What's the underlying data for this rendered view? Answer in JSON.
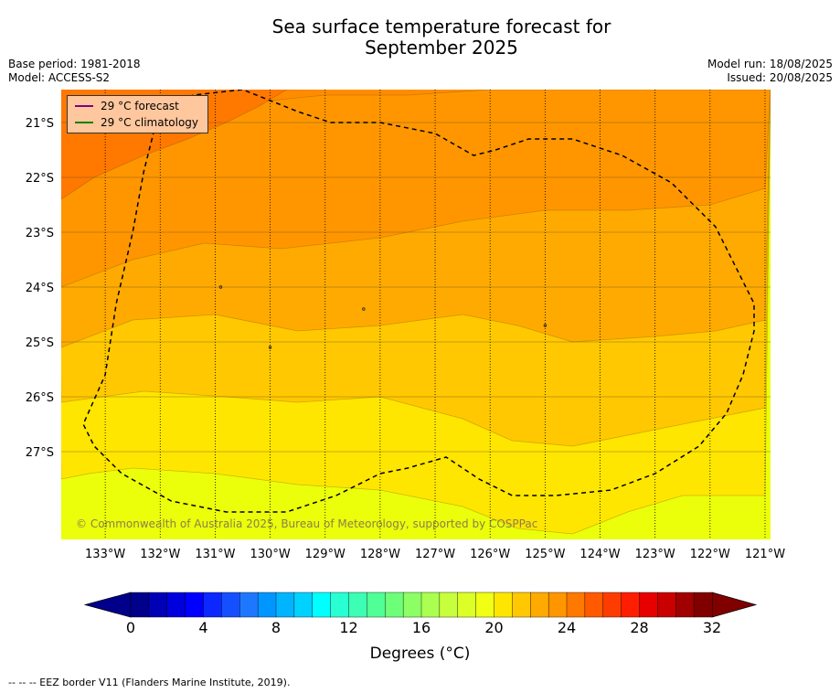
{
  "header": {
    "title_line1": "Sea surface temperature forecast for",
    "title_line2": "September 2025",
    "base_period": "Base period: 1981-2018",
    "model": "Model: ACCESS-S2",
    "model_run": "Model run: 18/08/2025",
    "issued": "Issued: 20/08/2025"
  },
  "legend": {
    "items": [
      {
        "label": "29 °C  forecast",
        "color": "#800080"
      },
      {
        "label": "29 °C  climatology",
        "color": "#008000"
      }
    ]
  },
  "watermark": "© Commonwealth of Australia 2025, Bureau of Meteorology, supported by COSPPac",
  "footnote": "--  --  -- EEZ border V11 (Flanders Marine Institute, 2019).",
  "colorbar": {
    "unit": "Degrees (°C)",
    "tick_labels": [
      "0",
      "4",
      "8",
      "12",
      "16",
      "20",
      "24",
      "28",
      "32"
    ]
  },
  "chart_data": {
    "type": "heatmap",
    "title": "Sea surface temperature forecast for September 2025",
    "variable": "Sea surface temperature",
    "units": "°C",
    "xlim": [
      -133.8,
      -120.9
    ],
    "ylim": [
      -28.6,
      -20.4
    ],
    "x_ticks": [
      -133,
      -132,
      -131,
      -130,
      -129,
      -128,
      -127,
      -126,
      -125,
      -124,
      -123,
      -122,
      -121
    ],
    "x_tick_labels": [
      "133°W",
      "132°W",
      "131°W",
      "130°W",
      "129°W",
      "128°W",
      "127°W",
      "126°W",
      "125°W",
      "124°W",
      "123°W",
      "122°W",
      "121°W"
    ],
    "y_ticks": [
      -21,
      -22,
      -23,
      -24,
      -25,
      -26,
      -27
    ],
    "y_tick_labels": [
      "21°S",
      "22°S",
      "23°S",
      "24°S",
      "25°S",
      "26°S",
      "27°S"
    ],
    "grid": true,
    "legend_placement": "top-left",
    "colorbar_range": [
      0,
      32
    ],
    "colorbar_step": 1,
    "colorbar_colors": [
      "#00008b",
      "#0000b4",
      "#0000dc",
      "#0000ff",
      "#0a28ff",
      "#1450ff",
      "#1e78ff",
      "#0096ff",
      "#00b4ff",
      "#00d2ff",
      "#00ffff",
      "#28ffd2",
      "#3cffb4",
      "#50ff96",
      "#6eff78",
      "#8cff64",
      "#aaff50",
      "#c8ff3c",
      "#dcff28",
      "#f0ff14",
      "#ffe600",
      "#ffc800",
      "#ffaa00",
      "#ff9600",
      "#ff7800",
      "#ff5a00",
      "#ff3c00",
      "#ff1e00",
      "#e60000",
      "#c80000",
      "#a00000",
      "#800000"
    ],
    "contour_bands": [
      {
        "range": [
          21,
          22
        ],
        "color": "#ebff0a"
      },
      {
        "range": [
          22,
          23
        ],
        "color": "#ffe600"
      },
      {
        "range": [
          23,
          24
        ],
        "color": "#ffc800"
      },
      {
        "range": [
          24,
          25
        ],
        "color": "#ffaa00"
      },
      {
        "range": [
          25,
          26
        ],
        "color": "#ff9600"
      },
      {
        "range": [
          26,
          27
        ],
        "color": "#ff8c00"
      },
      {
        "range": [
          27,
          28
        ],
        "color": "#ff7800"
      }
    ],
    "band_boundaries": [
      {
        "level": 27,
        "lon": [
          -133.8,
          -133.2,
          -132.3,
          -131.5,
          -130.8,
          -130.2,
          -129.7
        ],
        "lat": [
          -22.4,
          -22.0,
          -21.6,
          -21.3,
          -21.0,
          -20.7,
          -20.4
        ]
      },
      {
        "level": 26,
        "lon": [
          -133.8,
          -132.5,
          -131.2,
          -130.0,
          -129.0,
          -127.5,
          -126.0,
          -124.0,
          -122.0,
          -121.0
        ],
        "lat": [
          -20.8,
          -20.8,
          -20.7,
          -20.6,
          -20.5,
          -20.5,
          -20.4,
          -20.4,
          -20.4,
          -20.4
        ]
      },
      {
        "level": 25,
        "lon": [
          -133.8,
          -132.5,
          -131.2,
          -129.8,
          -128.0,
          -126.5,
          -125.0,
          -123.5,
          -122.0,
          -121.0
        ],
        "lat": [
          -24.0,
          -23.5,
          -23.2,
          -23.3,
          -23.1,
          -22.8,
          -22.6,
          -22.6,
          -22.5,
          -22.2
        ]
      },
      {
        "level": 24,
        "lon": [
          -133.8,
          -132.5,
          -131.0,
          -129.5,
          -128.0,
          -126.5,
          -125.5,
          -124.5,
          -123.0,
          -121.9,
          -121.0
        ],
        "lat": [
          -25.1,
          -24.6,
          -24.5,
          -24.8,
          -24.7,
          -24.5,
          -24.7,
          -25.0,
          -24.9,
          -24.8,
          -24.6
        ]
      },
      {
        "level": 23,
        "lon": [
          -133.8,
          -132.3,
          -130.8,
          -129.5,
          -128.0,
          -126.5,
          -125.6,
          -124.5,
          -123.0,
          -122.0,
          -121.0
        ],
        "lat": [
          -26.1,
          -25.9,
          -26.0,
          -26.1,
          -26.0,
          -26.4,
          -26.8,
          -26.9,
          -26.6,
          -26.4,
          -26.2
        ]
      },
      {
        "level": 22,
        "lon": [
          -133.8,
          -133.3,
          -132.5,
          -131.0,
          -129.5,
          -128.0,
          -126.5,
          -125.5,
          -124.5,
          -123.5,
          -122.5,
          -121.0
        ],
        "lat": [
          -27.5,
          -27.4,
          -27.3,
          -27.4,
          -27.6,
          -27.7,
          -28.0,
          -28.4,
          -28.5,
          -28.1,
          -27.8,
          -27.8
        ]
      }
    ],
    "eez_border": {
      "style": "dashed",
      "lon": [
        -132.0,
        -132.3,
        -132.5,
        -132.8,
        -133.0,
        -133.4,
        -133.2,
        -132.7,
        -131.8,
        -130.8,
        -129.7,
        -128.8,
        -128.0,
        -127.5,
        -126.8,
        -126.2,
        -125.6,
        -124.8,
        -123.8,
        -123.0,
        -122.2,
        -121.7,
        -121.4,
        -121.2,
        -121.2,
        -121.5,
        -121.9,
        -122.7,
        -123.6,
        -124.5,
        -125.3,
        -125.9,
        -126.3,
        -127.0,
        -128.0,
        -128.9,
        -129.5,
        -130.5,
        -131.4,
        -131.9,
        -132.0
      ],
      "lat": [
        -20.7,
        -21.9,
        -23.0,
        -24.3,
        -25.6,
        -26.5,
        -26.9,
        -27.4,
        -27.9,
        -28.1,
        -28.1,
        -27.8,
        -27.4,
        -27.3,
        -27.1,
        -27.5,
        -27.8,
        -27.8,
        -27.7,
        -27.4,
        -26.9,
        -26.3,
        -25.6,
        -24.8,
        -24.3,
        -23.7,
        -22.9,
        -22.1,
        -21.6,
        -21.3,
        -21.3,
        -21.5,
        -21.6,
        -21.2,
        -21.0,
        -21.0,
        -20.8,
        -20.4,
        -20.5,
        -20.7,
        -20.7
      ]
    },
    "islands": [
      {
        "lon": -130.9,
        "lat": -24.0
      },
      {
        "lon": -128.3,
        "lat": -24.4
      },
      {
        "lon": -130.0,
        "lat": -25.1
      },
      {
        "lon": -125.0,
        "lat": -24.7
      }
    ]
  }
}
